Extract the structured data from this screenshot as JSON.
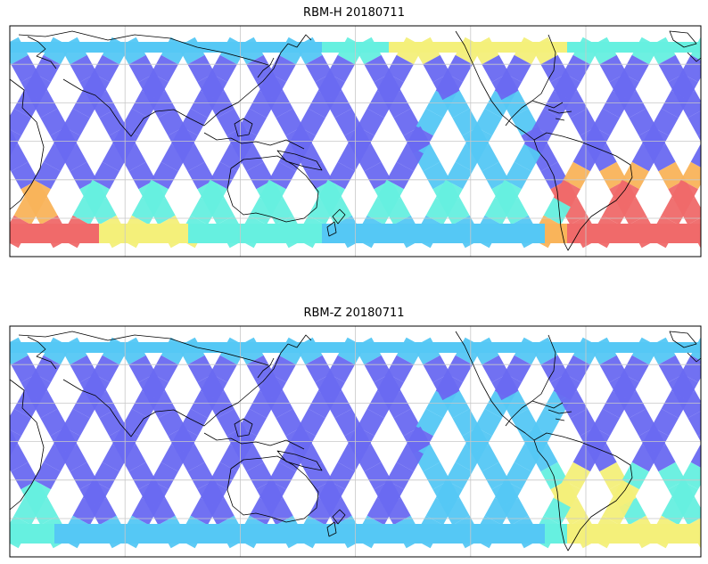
{
  "figure": {
    "panels": [
      {
        "title": "RBM-H 20180711"
      },
      {
        "title": "RBM-Z 20180711"
      }
    ]
  },
  "colors": {
    "swath_low": "#6a6af2",
    "swath_mid": "#55c8f5",
    "swath_cyan": "#66f0e0",
    "swath_yellow": "#f4f07a",
    "swath_orange": "#f9b45a",
    "swath_high": "#f06a6a",
    "coast": "#000000",
    "grid": "#c8c8c8"
  }
}
